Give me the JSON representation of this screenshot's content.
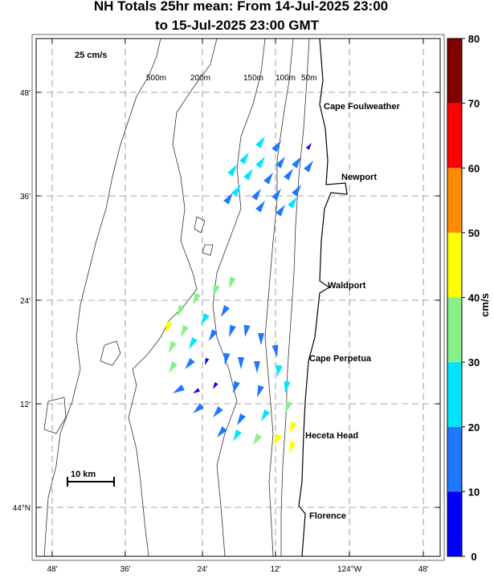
{
  "header": {
    "title": [
      "NH Totals 25hr mean: From 14-Jul-2025 23:00",
      "to 15-Jul-2025 23:00 GMT"
    ]
  },
  "map": {
    "scale_label": "25 cm/s",
    "distance_label": "10 km",
    "depth_labels": [
      "500m",
      "200m",
      "150m",
      "100m",
      "50m"
    ],
    "places": [
      "Cape Foulweather",
      "Newport",
      "Waldport",
      "Cape Perpetua",
      "Heceta Head",
      "Florence"
    ],
    "lat_ticks": [
      "48'",
      "36'",
      "24'",
      "12'",
      "44°N"
    ],
    "lon_ticks": [
      "48'",
      "36'",
      "24'",
      "12'",
      "124°W",
      "48'"
    ]
  },
  "colorbar": {
    "unit": "cm/s",
    "ticks": [
      0,
      10,
      20,
      30,
      40,
      50,
      60,
      70,
      80
    ],
    "colors": [
      "#0000ff",
      "#1e78ff",
      "#00e5ff",
      "#88f088",
      "#ffff00",
      "#ff8c00",
      "#ff0000",
      "#800000"
    ]
  }
}
